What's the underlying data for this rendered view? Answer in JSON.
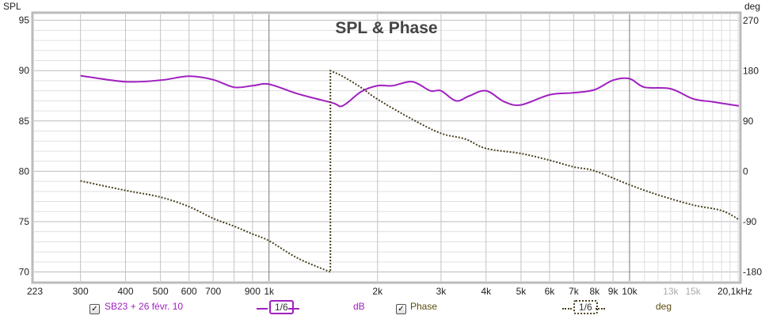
{
  "chart_data": {
    "type": "line",
    "title": "SPL & Phase",
    "ylabel": "SPL",
    "ylabel_right": "deg",
    "xscale": "log",
    "xlim": [
      223,
      20100
    ],
    "ylim": [
      69.1,
      95.6
    ],
    "ylim_right": [
      -196,
      281
    ],
    "grid": true,
    "x_ticks": [
      {
        "v": 223,
        "label": "223"
      },
      {
        "v": 300,
        "label": "300"
      },
      {
        "v": 400,
        "label": "400"
      },
      {
        "v": 500,
        "label": "500"
      },
      {
        "v": 600,
        "label": "600"
      },
      {
        "v": 700,
        "label": "700"
      },
      {
        "v": 900,
        "label": "900"
      },
      {
        "v": 1000,
        "label": "1k"
      },
      {
        "v": 2000,
        "label": "2k"
      },
      {
        "v": 3000,
        "label": "3k"
      },
      {
        "v": 4000,
        "label": "4k"
      },
      {
        "v": 5000,
        "label": "5k"
      },
      {
        "v": 6000,
        "label": "6k"
      },
      {
        "v": 7000,
        "label": "7k"
      },
      {
        "v": 8000,
        "label": "8k"
      },
      {
        "v": 9000,
        "label": "9k"
      },
      {
        "v": 10000,
        "label": "10k"
      },
      {
        "v": 13000,
        "label": "13k",
        "faint": true
      },
      {
        "v": 15000,
        "label": "15k",
        "faint": true
      },
      {
        "v": 20100,
        "label": "20,1kHz"
      }
    ],
    "y_ticks": [
      70,
      75,
      80,
      85,
      90,
      95
    ],
    "y_ticks_right": [
      -180,
      -90,
      0,
      90,
      180,
      270
    ],
    "series": [
      {
        "name": "SB23 + 26 févr. 10",
        "axis": "left",
        "unit": "dB",
        "smoothing": "1/6",
        "color": "#a020c0",
        "style": "solid",
        "x": [
          300,
          400,
          500,
          600,
          700,
          800,
          900,
          1000,
          1200,
          1500,
          1600,
          1800,
          2000,
          2200,
          2500,
          2800,
          3000,
          3300,
          3600,
          4000,
          4500,
          5000,
          6000,
          7000,
          8000,
          9000,
          10000,
          11000,
          13000,
          15000,
          17000,
          20100
        ],
        "y": [
          89.5,
          88.9,
          89.05,
          89.45,
          89.1,
          88.35,
          88.5,
          88.65,
          87.7,
          86.8,
          86.5,
          87.9,
          88.5,
          88.5,
          88.9,
          88.0,
          88.0,
          87.0,
          87.5,
          88.0,
          86.9,
          86.6,
          87.6,
          87.8,
          88.1,
          89.05,
          89.2,
          88.35,
          88.2,
          87.2,
          86.9,
          86.5
        ]
      },
      {
        "name": "Phase",
        "axis": "right",
        "unit": "deg",
        "smoothing": "1/6",
        "color": "#4a4020",
        "style": "dotted",
        "x": [
          300,
          400,
          500,
          600,
          700,
          800,
          900,
          1000,
          1200,
          1480,
          1480,
          1600,
          1800,
          2000,
          2500,
          3000,
          3500,
          4000,
          5000,
          6000,
          7000,
          8000,
          10000,
          12000,
          15000,
          18000,
          20100
        ],
        "y": [
          -17,
          -34,
          -46,
          -63,
          -84,
          -98,
          -112,
          -124,
          -155,
          -180,
          180,
          170,
          150,
          129,
          93,
          68,
          58,
          41,
          32,
          20,
          8,
          1,
          -24,
          -42,
          -60,
          -70,
          -86
        ]
      }
    ]
  },
  "legend": {
    "spl_name": "SB23 + 26 févr. 10",
    "spl_smoothing": "1/6",
    "spl_unit": "dB",
    "phase_name": "Phase",
    "phase_smoothing": "1/6",
    "phase_unit": "deg"
  }
}
